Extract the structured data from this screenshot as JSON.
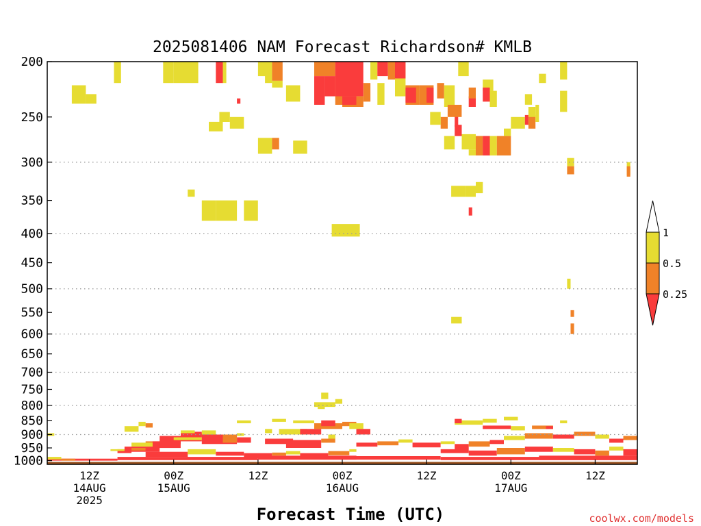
{
  "chart_data": {
    "type": "heatmap",
    "title": "2025081406 NAM Forecast Richardson# KMLB",
    "xlabel": "Forecast Time (UTC)",
    "ylabel": "",
    "credit": "coolwx.com/models",
    "x_unit": "forecast hour from 2025-08-14 06Z",
    "xlim": [
      0,
      84
    ],
    "ylim": [
      1015,
      200
    ],
    "y_scale": "log-pressure",
    "x_ticks": [
      {
        "hour": 6,
        "label": "12Z",
        "date": "14AUG",
        "year": "2025"
      },
      {
        "hour": 18,
        "label": "00Z",
        "date": "15AUG",
        "year": ""
      },
      {
        "hour": 30,
        "label": "12Z",
        "date": "",
        "year": ""
      },
      {
        "hour": 42,
        "label": "00Z",
        "date": "16AUG",
        "year": ""
      },
      {
        "hour": 54,
        "label": "12Z",
        "date": "",
        "year": ""
      },
      {
        "hour": 66,
        "label": "00Z",
        "date": "17AUG",
        "year": ""
      },
      {
        "hour": 78,
        "label": "12Z",
        "date": "",
        "year": ""
      }
    ],
    "y_ticks": [
      200,
      250,
      300,
      350,
      400,
      450,
      500,
      550,
      600,
      650,
      700,
      750,
      800,
      850,
      900,
      950,
      1000
    ],
    "y_tick_labels": [
      "200",
      "250",
      "300",
      "350",
      "400",
      "450",
      "500",
      "550",
      "600",
      "650",
      "700",
      "750",
      "800",
      "850",
      "900",
      "950",
      "1000"
    ],
    "grid_levels": [
      300,
      400,
      500,
      600,
      700,
      800,
      900
    ],
    "ground_level_hpa": 1005,
    "legend": {
      "placement": "right",
      "labels": [
        "1",
        "0.5",
        "0.25"
      ],
      "classes": [
        {
          "range": "0.5-1",
          "color": "#e6dc32"
        },
        {
          "range": "0.25-0.5",
          "color": "#f08228"
        },
        {
          "range": "<0.25",
          "color": "#fa3c3c"
        }
      ],
      "over_color": "#ffffff",
      "under_color": "#fa3c3c"
    },
    "colors": {
      "y": "#e6dc32",
      "o": "#f08228",
      "r": "#fa3c3c",
      "ground": "#96501e"
    },
    "cells": [
      [
        "y",
        9.5,
        10.5,
        200,
        218
      ],
      [
        "y",
        3.5,
        5.5,
        220,
        237
      ],
      [
        "y",
        5.5,
        7,
        228,
        237
      ],
      [
        "y",
        18,
        21.5,
        200,
        218
      ],
      [
        "r",
        24,
        25,
        200,
        218
      ],
      [
        "y",
        25,
        25.5,
        200,
        218
      ],
      [
        "y",
        31,
        32,
        200,
        218
      ],
      [
        "o",
        32,
        33.5,
        200,
        216
      ],
      [
        "y",
        32,
        33.5,
        216,
        222
      ],
      [
        "o",
        38,
        41,
        200,
        212
      ],
      [
        "r",
        38,
        39.5,
        212,
        238
      ],
      [
        "o",
        41,
        42,
        212,
        238
      ],
      [
        "r",
        39.5,
        41,
        212,
        230
      ],
      [
        "r",
        41,
        45,
        200,
        230
      ],
      [
        "o",
        42,
        45,
        230,
        240
      ],
      [
        "r",
        42,
        44,
        230,
        238
      ],
      [
        "o",
        45,
        46,
        218,
        235
      ],
      [
        "y",
        46,
        47,
        200,
        215
      ],
      [
        "y",
        47,
        48,
        218,
        238
      ],
      [
        "r",
        47,
        48.5,
        200,
        212
      ],
      [
        "o",
        48.5,
        49.5,
        200,
        215
      ],
      [
        "y",
        49.5,
        51,
        200,
        230
      ],
      [
        "r",
        49.5,
        51,
        200,
        214
      ],
      [
        "o",
        51,
        53,
        220,
        238
      ],
      [
        "r",
        51,
        52.5,
        222,
        236
      ],
      [
        "o",
        53,
        55,
        220,
        238
      ],
      [
        "r",
        54,
        55,
        222,
        236
      ],
      [
        "o",
        55.5,
        56.5,
        218,
        232
      ],
      [
        "y",
        56.5,
        58,
        220,
        240
      ],
      [
        "y",
        58.5,
        60,
        200,
        212
      ],
      [
        "r",
        58,
        58.5,
        240,
        260
      ],
      [
        "o",
        56,
        57,
        250,
        262
      ],
      [
        "y",
        54.5,
        56,
        245,
        258
      ],
      [
        "o",
        57,
        59,
        238,
        250
      ],
      [
        "r",
        58,
        59,
        258,
        270
      ],
      [
        "y",
        34,
        36,
        220,
        235
      ],
      [
        "y",
        35,
        37,
        275,
        290
      ],
      [
        "y",
        30,
        32,
        272,
        290
      ],
      [
        "o",
        32,
        33,
        272,
        285
      ],
      [
        "y",
        24.5,
        26,
        245,
        255
      ],
      [
        "y",
        26,
        28,
        250,
        262
      ],
      [
        "y",
        23,
        25,
        255,
        265
      ],
      [
        "r",
        27,
        27.5,
        232,
        237
      ],
      [
        "y",
        56.5,
        58,
        270,
        285
      ],
      [
        "y",
        59,
        61,
        268,
        285
      ],
      [
        "y",
        60,
        61,
        285,
        292
      ],
      [
        "o",
        61,
        62,
        270,
        292
      ],
      [
        "r",
        62,
        63,
        270,
        292
      ],
      [
        "y",
        63,
        64,
        270,
        292
      ],
      [
        "o",
        64,
        66,
        270,
        292
      ],
      [
        "y",
        65,
        66,
        262,
        270
      ],
      [
        "y",
        66,
        68,
        250,
        262
      ],
      [
        "r",
        68,
        68.5,
        248,
        258
      ],
      [
        "o",
        68.5,
        69.5,
        248,
        262
      ],
      [
        "y",
        69.5,
        70,
        238,
        255
      ],
      [
        "y",
        70,
        71,
        210,
        218
      ],
      [
        "y",
        57.5,
        59.5,
        330,
        345
      ],
      [
        "y",
        59.5,
        61,
        330,
        345
      ],
      [
        "y",
        61,
        62,
        325,
        340
      ],
      [
        "r",
        60,
        60.5,
        360,
        372
      ],
      [
        "y",
        73,
        74,
        200,
        215
      ],
      [
        "y",
        73,
        74,
        225,
        245
      ],
      [
        "y",
        74,
        75,
        295,
        305
      ],
      [
        "o",
        74,
        75,
        305,
        315
      ],
      [
        "y",
        82.5,
        83,
        300,
        316
      ],
      [
        "o",
        82.5,
        83,
        305,
        318
      ],
      [
        "y",
        74,
        74.5,
        480,
        500
      ],
      [
        "o",
        74.5,
        75,
        545,
        560
      ],
      [
        "o",
        74.5,
        75,
        575,
        600
      ],
      [
        "y",
        57.5,
        59,
        560,
        575
      ],
      [
        "r",
        60,
        61,
        230,
        240
      ],
      [
        "o",
        60,
        61,
        222,
        232
      ],
      [
        "y",
        62,
        63.5,
        215,
        225
      ],
      [
        "r",
        62,
        63,
        222,
        235
      ],
      [
        "y",
        63,
        64,
        225,
        240
      ],
      [
        "y",
        68,
        69,
        228,
        238
      ],
      [
        "y",
        68.5,
        69.5,
        240,
        250
      ],
      [
        "y",
        40.5,
        44.5,
        385,
        405
      ],
      [
        "y",
        22,
        24,
        350,
        380
      ],
      [
        "y",
        24,
        27,
        350,
        380
      ],
      [
        "y",
        28,
        30,
        350,
        380
      ],
      [
        "y",
        20,
        21,
        335,
        345
      ],
      [
        "y",
        16.5,
        18,
        200,
        218
      ],
      [
        "y",
        30,
        31.5,
        200,
        212
      ],
      [
        "y",
        11,
        13,
        870,
        890
      ],
      [
        "y",
        13,
        14,
        855,
        870
      ],
      [
        "o",
        14,
        15,
        860,
        875
      ],
      [
        "y",
        19,
        21,
        885,
        905
      ],
      [
        "r",
        21,
        22,
        890,
        910
      ],
      [
        "y",
        22,
        24,
        885,
        900
      ],
      [
        "r",
        16,
        19,
        905,
        935
      ],
      [
        "r",
        19,
        22,
        895,
        925
      ],
      [
        "r",
        22,
        27,
        900,
        935
      ],
      [
        "o",
        25,
        27,
        900,
        930
      ],
      [
        "r",
        27,
        29,
        910,
        930
      ],
      [
        "o",
        14,
        16,
        925,
        945
      ],
      [
        "r",
        15,
        19,
        925,
        950
      ],
      [
        "y",
        12,
        15,
        930,
        945
      ],
      [
        "y",
        18,
        22,
        910,
        920
      ],
      [
        "r",
        11,
        16,
        945,
        965
      ],
      [
        "r",
        10,
        12,
        955,
        970
      ],
      [
        "o",
        12,
        14,
        950,
        960
      ],
      [
        "y",
        9,
        11,
        955,
        962
      ],
      [
        "r",
        14,
        20,
        965,
        985
      ],
      [
        "y",
        20,
        24,
        955,
        975
      ],
      [
        "r",
        24,
        28,
        965,
        980
      ],
      [
        "r",
        28,
        32,
        970,
        990
      ],
      [
        "o",
        32,
        34,
        968,
        980
      ],
      [
        "y",
        34,
        36,
        962,
        975
      ],
      [
        "r",
        36,
        40,
        970,
        985
      ],
      [
        "o",
        40,
        43,
        962,
        978
      ],
      [
        "y",
        43,
        44,
        955,
        965
      ],
      [
        "r",
        31,
        35,
        915,
        935
      ],
      [
        "r",
        34,
        39,
        920,
        950
      ],
      [
        "o",
        39,
        41,
        915,
        930
      ],
      [
        "y",
        40,
        41,
        900,
        915
      ],
      [
        "y",
        33,
        37,
        880,
        900
      ],
      [
        "r",
        36,
        39,
        880,
        900
      ],
      [
        "o",
        38,
        42,
        860,
        880
      ],
      [
        "r",
        39,
        41,
        850,
        870
      ],
      [
        "o",
        42,
        44,
        855,
        870
      ],
      [
        "y",
        43,
        45,
        860,
        880
      ],
      [
        "r",
        44,
        46,
        880,
        900
      ],
      [
        "y",
        35,
        38,
        850,
        860
      ],
      [
        "y",
        38,
        41,
        790,
        805
      ],
      [
        "y",
        39,
        40,
        760,
        780
      ],
      [
        "y",
        41,
        42,
        780,
        795
      ],
      [
        "y",
        38.5,
        39.5,
        800,
        812
      ],
      [
        "y",
        31,
        32,
        880,
        895
      ],
      [
        "y",
        32,
        34,
        845,
        855
      ],
      [
        "y",
        27,
        29,
        850,
        860
      ],
      [
        "y",
        27,
        28,
        895,
        905
      ],
      [
        "r",
        44,
        47,
        930,
        945
      ],
      [
        "o",
        47,
        50,
        925,
        940
      ],
      [
        "y",
        50,
        52,
        918,
        930
      ],
      [
        "r",
        52,
        56,
        930,
        948
      ],
      [
        "y",
        56,
        58,
        925,
        935
      ],
      [
        "r",
        58,
        60,
        935,
        955
      ],
      [
        "o",
        60,
        63,
        925,
        945
      ],
      [
        "r",
        63,
        65,
        920,
        935
      ],
      [
        "y",
        65,
        68,
        905,
        920
      ],
      [
        "o",
        68,
        72,
        895,
        915
      ],
      [
        "r",
        72,
        75,
        900,
        915
      ],
      [
        "o",
        75,
        78,
        890,
        905
      ],
      [
        "y",
        78,
        80,
        900,
        915
      ],
      [
        "r",
        80,
        82,
        915,
        930
      ],
      [
        "o",
        82,
        84,
        905,
        920
      ],
      [
        "r",
        56,
        60,
        955,
        970
      ],
      [
        "r",
        60,
        64,
        960,
        980
      ],
      [
        "o",
        64,
        68,
        950,
        975
      ],
      [
        "r",
        68,
        72,
        945,
        965
      ],
      [
        "y",
        72,
        75,
        950,
        965
      ],
      [
        "r",
        75,
        78,
        955,
        975
      ],
      [
        "o",
        78,
        80,
        960,
        980
      ],
      [
        "y",
        80,
        82,
        945,
        960
      ],
      [
        "r",
        82,
        84,
        955,
        980
      ],
      [
        "r",
        44,
        56,
        982,
        996
      ],
      [
        "r",
        56,
        70,
        985,
        998
      ],
      [
        "r",
        70,
        84,
        980,
        998
      ],
      [
        "r",
        10,
        30,
        985,
        998
      ],
      [
        "r",
        30,
        44,
        980,
        996
      ],
      [
        "r",
        0,
        10,
        992,
        1000
      ],
      [
        "y",
        0,
        2,
        985,
        995
      ],
      [
        "o",
        2,
        4,
        992,
        1000
      ],
      [
        "y",
        58,
        62,
        850,
        865
      ],
      [
        "r",
        58,
        59,
        845,
        860
      ],
      [
        "y",
        62,
        64,
        845,
        858
      ],
      [
        "y",
        65,
        67,
        838,
        850
      ],
      [
        "o",
        69,
        72,
        868,
        880
      ],
      [
        "r",
        71,
        72,
        870,
        880
      ],
      [
        "y",
        73,
        74,
        850,
        860
      ],
      [
        "y",
        66,
        68,
        870,
        885
      ],
      [
        "r",
        62,
        66,
        868,
        880
      ],
      [
        "y",
        0,
        1,
        895,
        905
      ]
    ]
  }
}
